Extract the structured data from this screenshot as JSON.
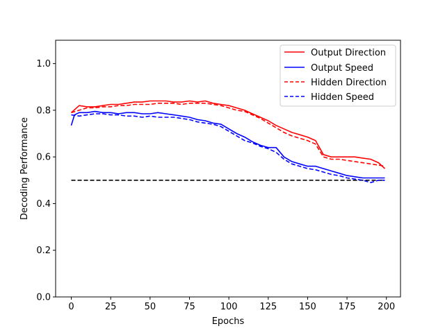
{
  "chart_data": {
    "type": "line",
    "title": "",
    "xlabel": "Epochs",
    "ylabel": "Decoding Performance",
    "xlim": [
      -9.95,
      208.95
    ],
    "ylim": [
      0.0,
      1.1
    ],
    "xticks": [
      0,
      25,
      50,
      75,
      100,
      125,
      150,
      175,
      200
    ],
    "yticks": [
      0.0,
      0.2,
      0.4,
      0.6,
      0.8,
      1.0
    ],
    "xtick_labels": [
      "0",
      "25",
      "50",
      "75",
      "100",
      "125",
      "150",
      "175",
      "200"
    ],
    "ytick_labels": [
      "0.0",
      "0.2",
      "0.4",
      "0.6",
      "0.8",
      "1.0"
    ],
    "grid": false,
    "legend_position": "top-right",
    "reference_line": {
      "y": 0.5,
      "x_range": [
        0,
        199
      ],
      "color": "#000000",
      "style": "dashed"
    },
    "series": [
      {
        "name": "Output Direction",
        "color": "#ff0000",
        "style": "solid",
        "x": [
          0,
          5,
          10,
          15,
          20,
          25,
          30,
          35,
          40,
          45,
          50,
          55,
          60,
          65,
          70,
          75,
          80,
          85,
          90,
          95,
          100,
          105,
          110,
          115,
          120,
          125,
          130,
          135,
          140,
          145,
          150,
          155,
          160,
          165,
          170,
          175,
          180,
          185,
          190,
          195,
          199
        ],
        "y": [
          0.79,
          0.82,
          0.815,
          0.815,
          0.82,
          0.825,
          0.825,
          0.83,
          0.835,
          0.835,
          0.84,
          0.84,
          0.84,
          0.835,
          0.835,
          0.84,
          0.835,
          0.84,
          0.83,
          0.825,
          0.82,
          0.81,
          0.8,
          0.785,
          0.77,
          0.755,
          0.735,
          0.72,
          0.705,
          0.695,
          0.685,
          0.67,
          0.61,
          0.6,
          0.6,
          0.6,
          0.6,
          0.595,
          0.59,
          0.575,
          0.55
        ]
      },
      {
        "name": "Output Speed",
        "color": "#0000ff",
        "style": "solid",
        "x": [
          0,
          2,
          5,
          10,
          15,
          20,
          25,
          30,
          35,
          40,
          45,
          50,
          55,
          60,
          65,
          70,
          75,
          80,
          85,
          90,
          95,
          100,
          105,
          110,
          115,
          120,
          125,
          130,
          135,
          140,
          145,
          150,
          155,
          160,
          165,
          170,
          175,
          180,
          185,
          190,
          195,
          199
        ],
        "y": [
          0.735,
          0.78,
          0.79,
          0.79,
          0.795,
          0.79,
          0.79,
          0.785,
          0.79,
          0.79,
          0.785,
          0.785,
          0.79,
          0.785,
          0.78,
          0.775,
          0.77,
          0.76,
          0.755,
          0.745,
          0.74,
          0.72,
          0.7,
          0.685,
          0.665,
          0.65,
          0.64,
          0.64,
          0.6,
          0.58,
          0.57,
          0.56,
          0.56,
          0.55,
          0.54,
          0.53,
          0.52,
          0.515,
          0.51,
          0.51,
          0.51,
          0.51
        ]
      },
      {
        "name": "Hidden Direction",
        "color": "#ff0000",
        "style": "dashed",
        "x": [
          0,
          5,
          10,
          15,
          20,
          25,
          30,
          35,
          40,
          45,
          50,
          55,
          60,
          65,
          70,
          75,
          80,
          85,
          90,
          95,
          100,
          105,
          110,
          115,
          120,
          125,
          130,
          135,
          140,
          145,
          150,
          155,
          160,
          165,
          170,
          175,
          180,
          185,
          190,
          195,
          199
        ],
        "y": [
          0.79,
          0.8,
          0.81,
          0.81,
          0.815,
          0.815,
          0.82,
          0.82,
          0.825,
          0.825,
          0.825,
          0.83,
          0.83,
          0.83,
          0.825,
          0.83,
          0.83,
          0.83,
          0.825,
          0.82,
          0.81,
          0.8,
          0.795,
          0.78,
          0.765,
          0.745,
          0.725,
          0.705,
          0.69,
          0.68,
          0.67,
          0.655,
          0.6,
          0.59,
          0.59,
          0.585,
          0.58,
          0.575,
          0.57,
          0.565,
          0.56
        ]
      },
      {
        "name": "Hidden Speed",
        "color": "#0000ff",
        "style": "dashed",
        "x": [
          0,
          5,
          10,
          15,
          20,
          25,
          30,
          35,
          40,
          45,
          50,
          55,
          60,
          65,
          70,
          75,
          80,
          85,
          90,
          95,
          100,
          105,
          110,
          115,
          120,
          125,
          130,
          135,
          140,
          145,
          150,
          155,
          160,
          165,
          170,
          175,
          180,
          185,
          190,
          195,
          199
        ],
        "y": [
          0.78,
          0.775,
          0.78,
          0.785,
          0.785,
          0.78,
          0.78,
          0.775,
          0.775,
          0.77,
          0.775,
          0.77,
          0.77,
          0.77,
          0.765,
          0.76,
          0.75,
          0.745,
          0.74,
          0.73,
          0.71,
          0.69,
          0.67,
          0.66,
          0.645,
          0.635,
          0.62,
          0.59,
          0.57,
          0.56,
          0.55,
          0.545,
          0.535,
          0.525,
          0.52,
          0.51,
          0.505,
          0.5,
          0.49,
          0.5,
          0.5
        ]
      }
    ]
  }
}
